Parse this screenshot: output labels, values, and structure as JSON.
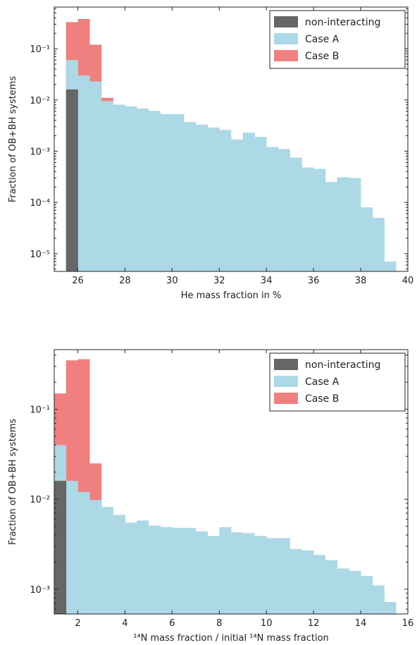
{
  "chart_data": [
    {
      "type": "bar",
      "yscale": "log",
      "xlim": [
        25,
        40
      ],
      "ylim": [
        4.5e-06,
        0.65
      ],
      "xlabel": "He mass fraction in %",
      "ylabel": "Fraction of OB+BH systems",
      "x_ticks": [
        26,
        28,
        30,
        32,
        34,
        36,
        38,
        40
      ],
      "x_tick_labels": [
        "26",
        "28",
        "30",
        "32",
        "34",
        "36",
        "38",
        "40"
      ],
      "y_ticks": [
        1e-05,
        0.0001,
        0.001,
        0.01,
        0.1
      ],
      "y_tick_labels": [
        "10⁻⁵",
        "10⁻⁴",
        "10⁻³",
        "10⁻²",
        "10⁻¹"
      ],
      "legend_position": "top-right",
      "legend": [
        "non-interacting",
        "Case A",
        "Case B"
      ],
      "series": [
        {
          "name": "Case B",
          "color": "#f08080",
          "bins": [
            {
              "x0": 25.5,
              "x1": 26.0,
              "y": 0.33
            },
            {
              "x0": 26.0,
              "x1": 26.5,
              "y": 0.38
            },
            {
              "x0": 26.5,
              "x1": 27.0,
              "y": 0.12
            },
            {
              "x0": 27.0,
              "x1": 27.5,
              "y": 0.011
            }
          ]
        },
        {
          "name": "Case A",
          "color": "#add8e6",
          "bins": [
            {
              "x0": 25.5,
              "x1": 26.0,
              "y": 0.06
            },
            {
              "x0": 26.0,
              "x1": 26.5,
              "y": 0.03
            },
            {
              "x0": 26.5,
              "x1": 27.0,
              "y": 0.023
            },
            {
              "x0": 27.0,
              "x1": 27.5,
              "y": 0.0095
            },
            {
              "x0": 27.5,
              "x1": 28.0,
              "y": 0.0081
            },
            {
              "x0": 28.0,
              "x1": 28.5,
              "y": 0.0075
            },
            {
              "x0": 28.5,
              "x1": 29.0,
              "y": 0.0068
            },
            {
              "x0": 29.0,
              "x1": 29.5,
              "y": 0.0061
            },
            {
              "x0": 29.5,
              "x1": 30.0,
              "y": 0.0053
            },
            {
              "x0": 30.0,
              "x1": 30.5,
              "y": 0.0053
            },
            {
              "x0": 30.5,
              "x1": 31.0,
              "y": 0.0037
            },
            {
              "x0": 31.0,
              "x1": 31.5,
              "y": 0.0033
            },
            {
              "x0": 31.5,
              "x1": 32.0,
              "y": 0.0029
            },
            {
              "x0": 32.0,
              "x1": 32.5,
              "y": 0.0026
            },
            {
              "x0": 32.5,
              "x1": 33.0,
              "y": 0.0017
            },
            {
              "x0": 33.0,
              "x1": 33.5,
              "y": 0.0023
            },
            {
              "x0": 33.5,
              "x1": 34.0,
              "y": 0.0019
            },
            {
              "x0": 34.0,
              "x1": 34.5,
              "y": 0.0012
            },
            {
              "x0": 34.5,
              "x1": 35.0,
              "y": 0.0011
            },
            {
              "x0": 35.0,
              "x1": 35.5,
              "y": 0.00075
            },
            {
              "x0": 35.5,
              "x1": 36.0,
              "y": 0.00048
            },
            {
              "x0": 36.0,
              "x1": 36.5,
              "y": 0.00045
            },
            {
              "x0": 36.5,
              "x1": 37.0,
              "y": 0.00025
            },
            {
              "x0": 37.0,
              "x1": 37.5,
              "y": 0.00031
            },
            {
              "x0": 37.5,
              "x1": 38.0,
              "y": 0.0003
            },
            {
              "x0": 38.0,
              "x1": 38.5,
              "y": 8e-05
            },
            {
              "x0": 38.5,
              "x1": 39.0,
              "y": 5e-05
            },
            {
              "x0": 39.0,
              "x1": 39.5,
              "y": 7e-06
            }
          ]
        },
        {
          "name": "non-interacting",
          "color": "#666666",
          "bins": [
            {
              "x0": 25.5,
              "x1": 26.0,
              "y": 0.016
            }
          ]
        }
      ]
    },
    {
      "type": "bar",
      "yscale": "log",
      "xlim": [
        1,
        16
      ],
      "ylim": [
        0.00053,
        0.46
      ],
      "xlabel": "¹⁴N mass fraction / initial ¹⁴N mass fraction",
      "ylabel": "Fraction of OB+BH systems",
      "x_ticks": [
        2,
        4,
        6,
        8,
        10,
        12,
        14,
        16
      ],
      "x_tick_labels": [
        "2",
        "4",
        "6",
        "8",
        "10",
        "12",
        "14",
        "16"
      ],
      "y_ticks": [
        0.001,
        0.01,
        0.1
      ],
      "y_tick_labels": [
        "10⁻³",
        "10⁻²",
        "10⁻¹"
      ],
      "legend_position": "top-right",
      "legend": [
        "non-interacting",
        "Case A",
        "Case B"
      ],
      "series": [
        {
          "name": "Case B",
          "color": "#f08080",
          "bins": [
            {
              "x0": 1.0,
              "x1": 1.5,
              "y": 0.15
            },
            {
              "x0": 1.5,
              "x1": 2.0,
              "y": 0.35
            },
            {
              "x0": 2.0,
              "x1": 2.5,
              "y": 0.36
            },
            {
              "x0": 2.5,
              "x1": 3.0,
              "y": 0.025
            }
          ]
        },
        {
          "name": "Case A",
          "color": "#add8e6",
          "bins": [
            {
              "x0": 1.0,
              "x1": 1.5,
              "y": 0.04
            },
            {
              "x0": 1.5,
              "x1": 2.0,
              "y": 0.016
            },
            {
              "x0": 2.0,
              "x1": 2.5,
              "y": 0.012
            },
            {
              "x0": 2.5,
              "x1": 3.0,
              "y": 0.0098
            },
            {
              "x0": 3.0,
              "x1": 3.5,
              "y": 0.0082
            },
            {
              "x0": 3.5,
              "x1": 4.0,
              "y": 0.0067
            },
            {
              "x0": 4.0,
              "x1": 4.5,
              "y": 0.0055
            },
            {
              "x0": 4.5,
              "x1": 5.0,
              "y": 0.0058
            },
            {
              "x0": 5.0,
              "x1": 5.5,
              "y": 0.0051
            },
            {
              "x0": 5.5,
              "x1": 6.0,
              "y": 0.0049
            },
            {
              "x0": 6.0,
              "x1": 6.5,
              "y": 0.0048
            },
            {
              "x0": 6.5,
              "x1": 7.0,
              "y": 0.0048
            },
            {
              "x0": 7.0,
              "x1": 7.5,
              "y": 0.0044
            },
            {
              "x0": 7.5,
              "x1": 8.0,
              "y": 0.0039
            },
            {
              "x0": 8.0,
              "x1": 8.5,
              "y": 0.0049
            },
            {
              "x0": 8.5,
              "x1": 9.0,
              "y": 0.0043
            },
            {
              "x0": 9.0,
              "x1": 9.5,
              "y": 0.0042
            },
            {
              "x0": 9.5,
              "x1": 10.0,
              "y": 0.0039
            },
            {
              "x0": 10.0,
              "x1": 10.5,
              "y": 0.0037
            },
            {
              "x0": 10.5,
              "x1": 11.0,
              "y": 0.0037
            },
            {
              "x0": 11.0,
              "x1": 11.5,
              "y": 0.0028
            },
            {
              "x0": 11.5,
              "x1": 12.0,
              "y": 0.0027
            },
            {
              "x0": 12.0,
              "x1": 12.5,
              "y": 0.0024
            },
            {
              "x0": 12.5,
              "x1": 13.0,
              "y": 0.0021
            },
            {
              "x0": 13.0,
              "x1": 13.5,
              "y": 0.0017
            },
            {
              "x0": 13.5,
              "x1": 14.0,
              "y": 0.0016
            },
            {
              "x0": 14.0,
              "x1": 14.5,
              "y": 0.0014
            },
            {
              "x0": 14.5,
              "x1": 15.0,
              "y": 0.0011
            },
            {
              "x0": 15.0,
              "x1": 15.5,
              "y": 0.00072
            }
          ]
        },
        {
          "name": "non-interacting",
          "color": "#666666",
          "bins": [
            {
              "x0": 1.0,
              "x1": 1.5,
              "y": 0.016
            }
          ]
        }
      ]
    }
  ]
}
